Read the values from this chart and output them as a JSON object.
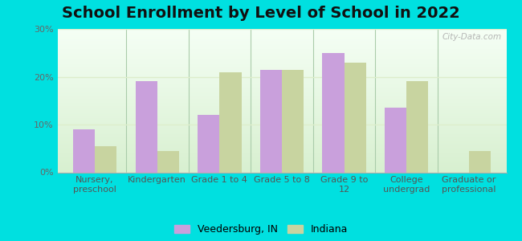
{
  "title": "School Enrollment by Level of School in 2022",
  "categories": [
    "Nursery,\npreschool",
    "Kindergarten",
    "Grade 1 to 4",
    "Grade 5 to 8",
    "Grade 9 to\n12",
    "College\nundergrad",
    "Graduate or\nprofessional"
  ],
  "veedersburg": [
    9.0,
    19.0,
    12.0,
    21.5,
    25.0,
    13.5,
    0.0
  ],
  "indiana": [
    5.5,
    4.5,
    21.0,
    21.5,
    23.0,
    19.0,
    4.5
  ],
  "color_veedersburg": "#c9a0dc",
  "color_indiana": "#c8d4a0",
  "bar_width": 0.35,
  "ylim": [
    0,
    30
  ],
  "yticks": [
    0,
    10,
    20,
    30
  ],
  "ytick_labels": [
    "0%",
    "10%",
    "20%",
    "30%"
  ],
  "legend_labels": [
    "Veedersburg, IN",
    "Indiana"
  ],
  "background_outer": "#00e0e0",
  "watermark": "City-Data.com",
  "title_fontsize": 14,
  "tick_fontsize": 8,
  "legend_fontsize": 9,
  "separator_color": "#aaccaa",
  "grid_color": "#ddeecc",
  "spine_color": "#aaaaaa"
}
